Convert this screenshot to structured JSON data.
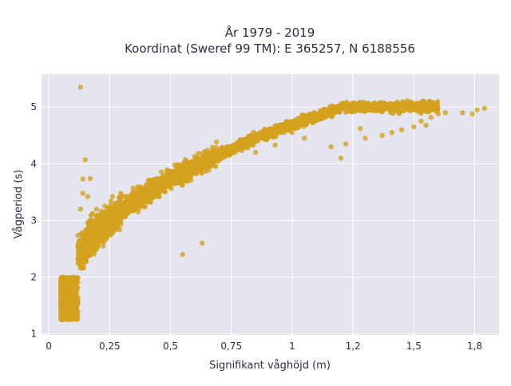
{
  "chart_data": {
    "type": "scatter",
    "title": [
      "År 1979 - 2019",
      "Koordinat (Sweref 99 TM): E 365257, N 6188556"
    ],
    "xlabel": "Signifikant våghöjd (m)",
    "ylabel": "Vågperiod (s)",
    "xlim": [
      -0.03,
      1.85
    ],
    "ylim": [
      0.98,
      5.58
    ],
    "x_ticks": [
      0,
      0.25,
      0.5,
      0.75,
      1,
      1.25,
      1.5,
      1.75
    ],
    "x_tick_labels": [
      "0",
      "0,25",
      "0,5",
      "0,75",
      "1",
      "1,2",
      "1,5",
      "1,8"
    ],
    "y_ticks": [
      1,
      2,
      3,
      4,
      5
    ],
    "y_tick_labels": [
      "1",
      "2",
      "3",
      "4",
      "5"
    ],
    "grid": true,
    "legend": "none",
    "marker_color": "#d4a11e",
    "plot_background": "#e5e5f0",
    "outliers": [
      {
        "x": 0.13,
        "y": 5.35
      },
      {
        "x": 0.15,
        "y": 4.07
      },
      {
        "x": 0.14,
        "y": 3.73
      },
      {
        "x": 0.17,
        "y": 3.74
      },
      {
        "x": 0.14,
        "y": 3.48
      },
      {
        "x": 0.16,
        "y": 3.42
      },
      {
        "x": 0.13,
        "y": 3.2
      },
      {
        "x": 0.12,
        "y": 2.74
      },
      {
        "x": 0.07,
        "y": 1.85
      },
      {
        "x": 1.79,
        "y": 4.98
      },
      {
        "x": 1.76,
        "y": 4.95
      },
      {
        "x": 1.74,
        "y": 4.88
      },
      {
        "x": 1.7,
        "y": 4.9
      },
      {
        "x": 1.63,
        "y": 4.9
      },
      {
        "x": 1.6,
        "y": 4.88
      },
      {
        "x": 1.57,
        "y": 4.82
      },
      {
        "x": 1.53,
        "y": 4.75
      },
      {
        "x": 1.55,
        "y": 4.68
      },
      {
        "x": 1.5,
        "y": 4.65
      },
      {
        "x": 1.45,
        "y": 4.6
      },
      {
        "x": 1.41,
        "y": 4.55
      },
      {
        "x": 1.37,
        "y": 4.5
      },
      {
        "x": 1.3,
        "y": 4.45
      },
      {
        "x": 1.28,
        "y": 4.62
      },
      {
        "x": 1.22,
        "y": 4.35
      },
      {
        "x": 1.2,
        "y": 4.1
      },
      {
        "x": 1.16,
        "y": 4.3
      },
      {
        "x": 1.05,
        "y": 4.45
      },
      {
        "x": 1.0,
        "y": 4.55
      },
      {
        "x": 0.93,
        "y": 4.33
      },
      {
        "x": 0.75,
        "y": 4.25
      },
      {
        "x": 0.85,
        "y": 4.2
      },
      {
        "x": 0.55,
        "y": 2.4
      },
      {
        "x": 0.63,
        "y": 2.6
      }
    ]
  }
}
